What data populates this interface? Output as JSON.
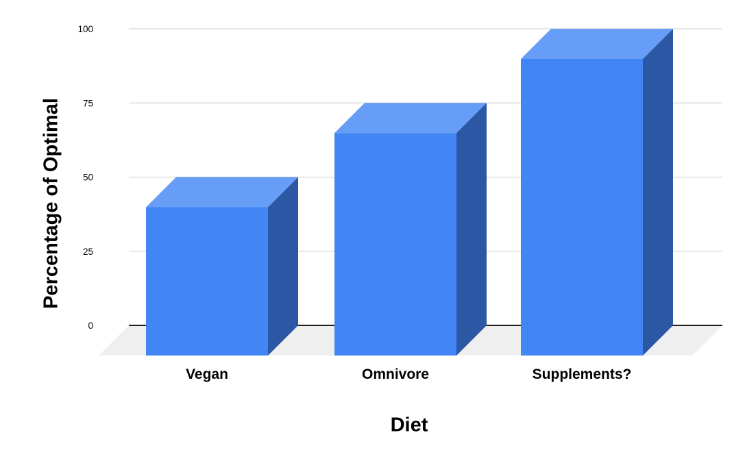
{
  "chart_data": {
    "type": "bar",
    "variant": "3d-column",
    "title": "",
    "xlabel": "Diet",
    "ylabel": "Percentage of Optimal",
    "categories": [
      "Vegan",
      "Omnivore",
      "Supplements?"
    ],
    "values": [
      50,
      75,
      100
    ],
    "ylim": [
      0,
      100
    ],
    "yticks": [
      0,
      25,
      50,
      75,
      100
    ],
    "ytick_labels": [
      "0",
      "25",
      "50",
      "75",
      "100"
    ],
    "grid": true,
    "legend_position": "none",
    "colors": {
      "bar_front": "#4285F4",
      "bar_top": "#669DF6",
      "bar_side": "#2B57A5",
      "gridline": "#CCCCCC",
      "baseline": "#212121",
      "floor": "#EFEFEF",
      "text": "#000000",
      "background": "#FFFFFF"
    }
  }
}
